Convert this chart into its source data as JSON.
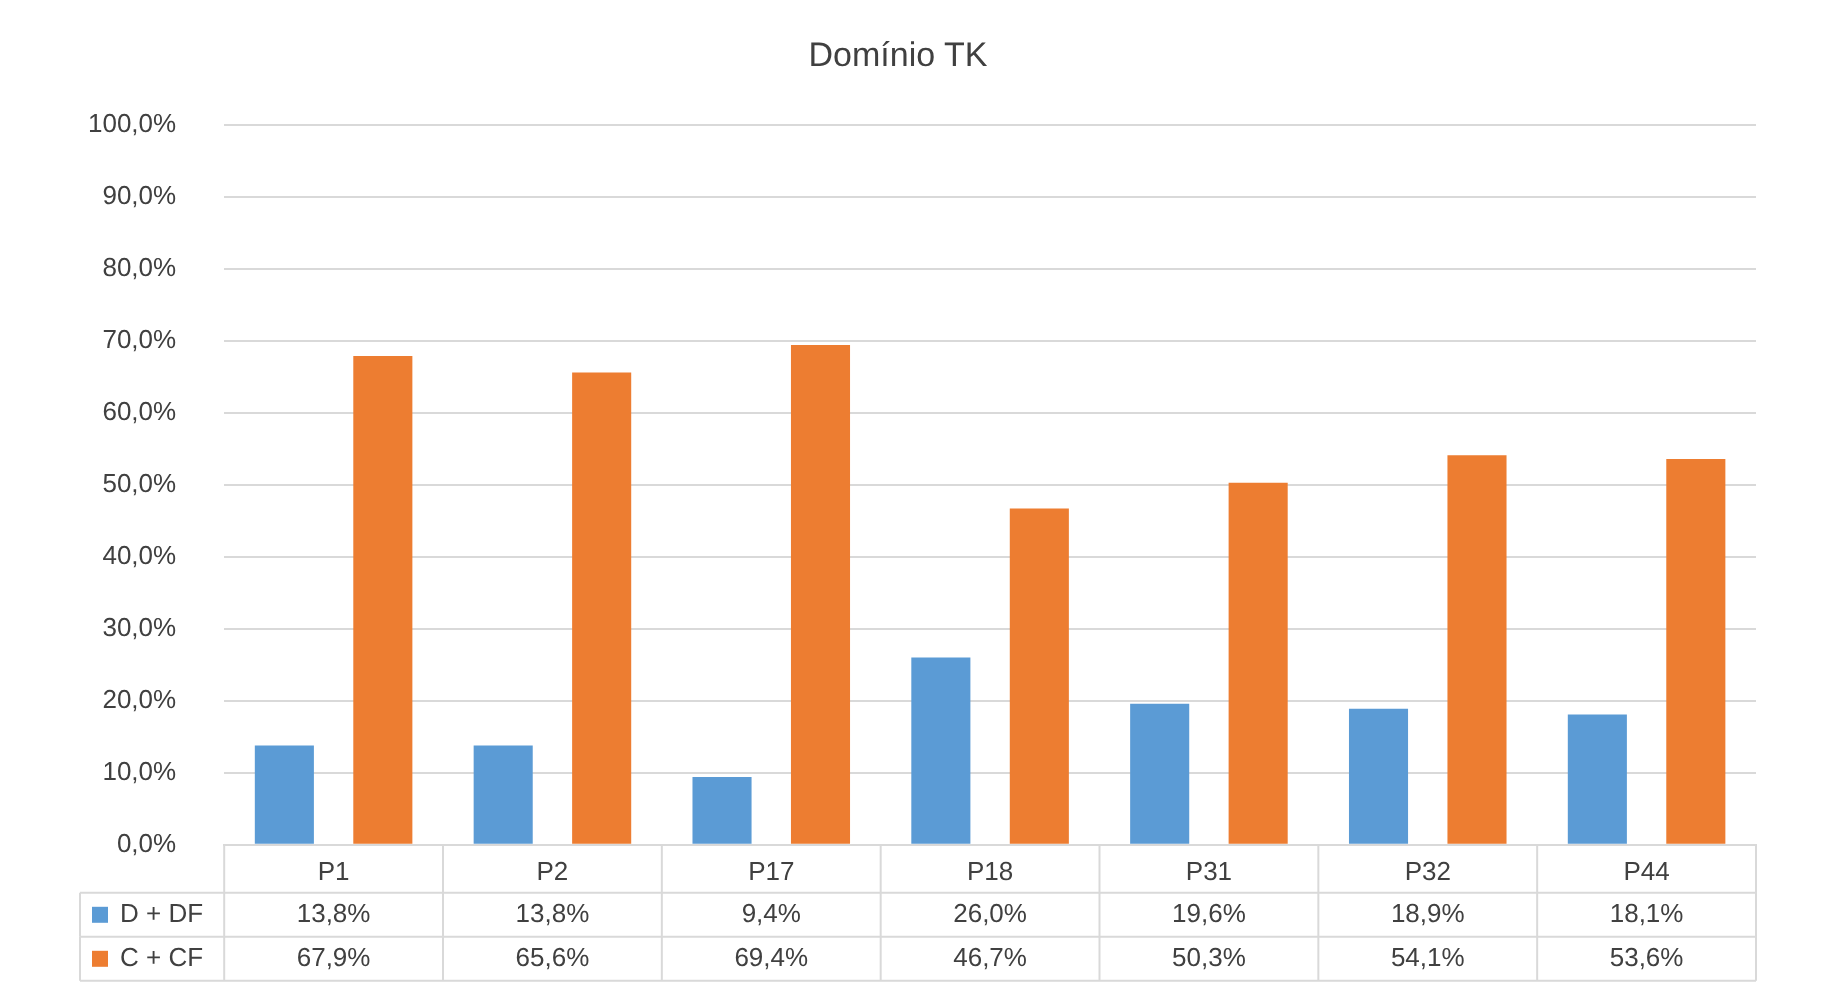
{
  "chart_data": {
    "type": "bar",
    "title": "Domínio TK",
    "categories": [
      "P1",
      "P2",
      "P17",
      "P18",
      "P31",
      "P32",
      "P44"
    ],
    "series": [
      {
        "name": "D + DF",
        "color": "#5b9bd5",
        "values": [
          13.8,
          13.8,
          9.4,
          26.0,
          19.6,
          18.9,
          18.1
        ],
        "value_labels": [
          "13,8%",
          "13,8%",
          "9,4%",
          "26,0%",
          "19,6%",
          "18,9%",
          "18,1%"
        ]
      },
      {
        "name": "C + CF",
        "color": "#ed7d31",
        "values": [
          67.9,
          65.6,
          69.4,
          46.7,
          50.3,
          54.1,
          53.6
        ],
        "value_labels": [
          "67,9%",
          "65,6%",
          "69,4%",
          "46,7%",
          "50,3%",
          "54,1%",
          "53,6%"
        ]
      }
    ],
    "ylim": [
      0,
      100
    ],
    "yticks": [
      {
        "value": 0,
        "label": "0,0%"
      },
      {
        "value": 10,
        "label": "10,0%"
      },
      {
        "value": 20,
        "label": "20,0%"
      },
      {
        "value": 30,
        "label": "30,0%"
      },
      {
        "value": 40,
        "label": "40,0%"
      },
      {
        "value": 50,
        "label": "50,0%"
      },
      {
        "value": 60,
        "label": "60,0%"
      },
      {
        "value": 70,
        "label": "70,0%"
      },
      {
        "value": 80,
        "label": "80,0%"
      },
      {
        "value": 90,
        "label": "90,0%"
      },
      {
        "value": 100,
        "label": "100,0%"
      }
    ],
    "grid": "y",
    "legend": "bottom"
  }
}
